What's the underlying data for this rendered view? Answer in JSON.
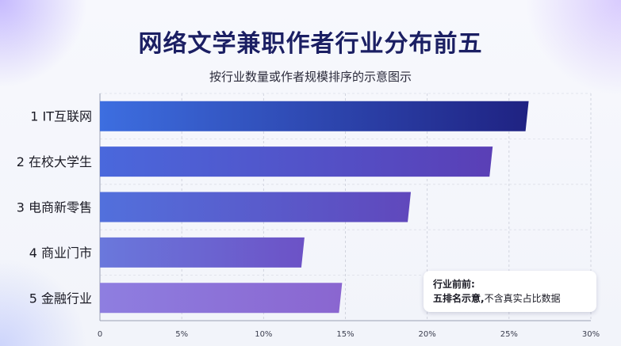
{
  "title": "网络文学兼职作者行业分布前五",
  "subtitle": "按行业数量或作者规模排序的示意图示",
  "note": {
    "line1": "行业前前:",
    "line2_bold": "五排名示意,",
    "line2_rest": "不含真实占比数据"
  },
  "colors": {
    "bar_top": "#2a2f8f",
    "bar_mid": "#5a4fc8",
    "bar_low": "#9a7ee0",
    "title": "#1b1f63"
  },
  "chart_data": {
    "type": "bar",
    "orientation": "horizontal",
    "categories": [
      "1 IT互联网",
      "2 在校大学生",
      "3 电商新零售",
      "4 商业门市",
      "5 金融行业"
    ],
    "values": [
      26.2,
      24.0,
      19.0,
      12.5,
      14.8
    ],
    "xlim": [
      0,
      30
    ],
    "xticks": [
      "0",
      "5%",
      "10%",
      "15%",
      "20%",
      "25%",
      "30%"
    ],
    "xlabel": "",
    "ylabel": "",
    "grid": true
  }
}
